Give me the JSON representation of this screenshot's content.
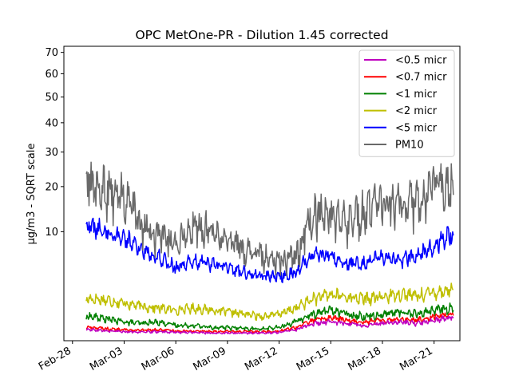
{
  "chart_data": {
    "type": "line",
    "title": "OPC MetOne-PR - Dilution 1.45 corrected",
    "xlabel": "",
    "ylabel": "µg/m3 - SQRT scale",
    "y_scale": "sqrt",
    "ylim": [
      0,
      73
    ],
    "xlim": [
      "Feb-27 12:00",
      "Mar-22 12:00"
    ],
    "y_ticks": [
      10,
      20,
      30,
      40,
      50,
      60,
      70
    ],
    "y_tick_labels": [
      "10",
      "20",
      "30",
      "40",
      "50",
      "60",
      "70"
    ],
    "x_ticks": [
      "Feb-28",
      "Mar-03",
      "Mar-06",
      "Mar-09",
      "Mar-12",
      "Mar-15",
      "Mar-18",
      "Mar-21"
    ],
    "legend_position": "top-right",
    "grid": false,
    "x_dates_daily": [
      "Mar-01",
      "Mar-02",
      "Mar-03",
      "Mar-04",
      "Mar-05",
      "Mar-06",
      "Mar-07",
      "Mar-08",
      "Mar-09",
      "Mar-10",
      "Mar-11",
      "Mar-12",
      "Mar-13",
      "Mar-14",
      "Mar-15",
      "Mar-16",
      "Mar-17",
      "Mar-18",
      "Mar-19",
      "Mar-20",
      "Mar-21",
      "Mar-22"
    ],
    "series": [
      {
        "name": "<0.5 micr",
        "color": "#bf00bf",
        "values": [
          0.1,
          0.08,
          0.07,
          0.06,
          0.07,
          0.06,
          0.06,
          0.05,
          0.05,
          0.05,
          0.05,
          0.06,
          0.1,
          0.25,
          0.3,
          0.25,
          0.2,
          0.25,
          0.3,
          0.25,
          0.35,
          0.45
        ]
      },
      {
        "name": "<0.7 micr",
        "color": "#ff0000",
        "values": [
          0.15,
          0.12,
          0.1,
          0.09,
          0.1,
          0.08,
          0.08,
          0.07,
          0.07,
          0.07,
          0.07,
          0.08,
          0.15,
          0.35,
          0.45,
          0.35,
          0.3,
          0.35,
          0.4,
          0.35,
          0.5,
          0.6
        ]
      },
      {
        "name": "<1 micr",
        "color": "#008000",
        "values": [
          0.5,
          0.4,
          0.3,
          0.25,
          0.3,
          0.2,
          0.2,
          0.15,
          0.15,
          0.12,
          0.12,
          0.15,
          0.3,
          0.6,
          0.8,
          0.6,
          0.5,
          0.6,
          0.7,
          0.6,
          0.8,
          0.9
        ]
      },
      {
        "name": "<2 micr",
        "color": "#bfbf00",
        "values": [
          1.5,
          1.4,
          1.2,
          1.0,
          0.9,
          0.8,
          0.9,
          0.8,
          0.7,
          0.6,
          0.5,
          0.6,
          0.9,
          1.5,
          1.8,
          1.6,
          1.5,
          1.6,
          1.9,
          1.7,
          2.0,
          2.2
        ]
      },
      {
        "name": "<5 micr",
        "color": "#0000ff",
        "values": [
          11,
          10,
          9,
          7,
          6,
          4.5,
          5.5,
          5,
          4.5,
          4,
          3.5,
          3.5,
          4,
          6.5,
          6,
          5,
          5,
          6,
          5.5,
          6,
          7.5,
          9.5
        ]
      },
      {
        "name": "PM10",
        "color": "#696969",
        "values": [
          21,
          19,
          17,
          11,
          9,
          8,
          11,
          10,
          8.5,
          7,
          6,
          5.5,
          6,
          14,
          13,
          12,
          14,
          16,
          15,
          16,
          20,
          21
        ]
      }
    ]
  }
}
